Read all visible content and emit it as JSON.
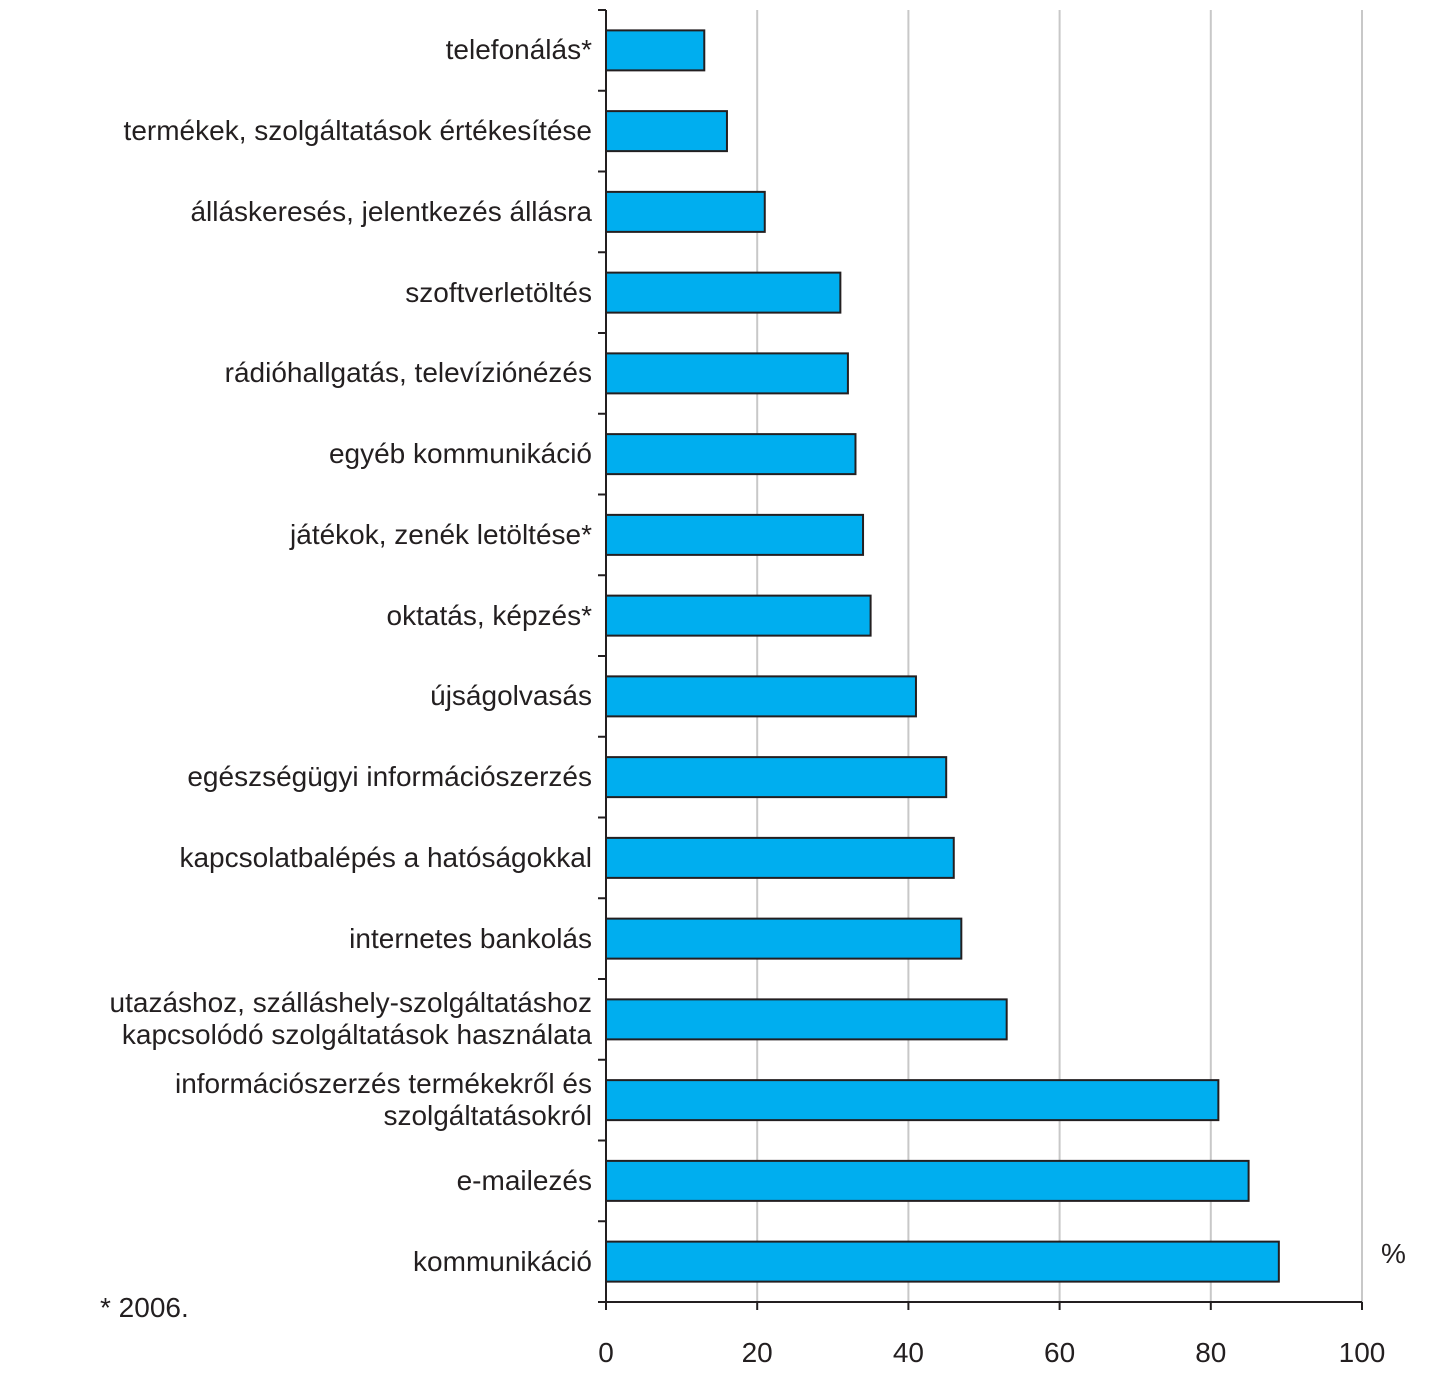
{
  "chart_data": {
    "type": "barh",
    "categories": [
      "telefonálás*",
      "termékek, szolgáltatások értékesítése",
      "álláskeresés, jelentkezés állásra",
      "szoftverletöltés",
      "rádióhallgatás, televízió­nézés",
      "egyéb kommunikáció",
      "játékok, zenék letöltése*",
      "oktatás, képzés*",
      "újságolvasás",
      "egészségügyi információszerzés",
      "kapcsolatbalépés a hatóságokkal",
      "internetes bankolás",
      "utazáshoz, szálláshely-szolgáltatáshoz\nkapcsolódó szolgáltatások használata",
      "információszerzés termékekről és\nszolgáltatásokról",
      "e-mailezés",
      "kommunikáció"
    ],
    "values": [
      13,
      16,
      21,
      31,
      32,
      33,
      34,
      35,
      41,
      45,
      46,
      47,
      53,
      81,
      85,
      89
    ],
    "color": "#00aeef",
    "xlim": [
      0,
      100
    ],
    "xticks": [
      0,
      20,
      40,
      60,
      80,
      100
    ],
    "grid": true,
    "unit_label": "%",
    "footnote": "* 2006."
  }
}
